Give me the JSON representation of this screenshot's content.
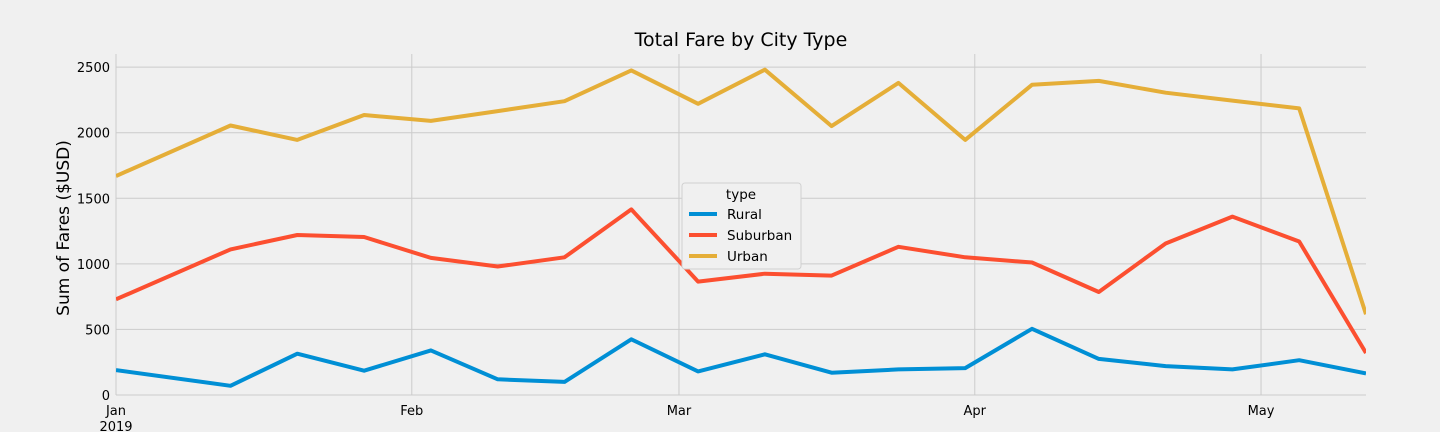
{
  "chart_data": {
    "type": "line",
    "title": "Total Fare by City Type",
    "xlabel": "",
    "ylabel": "Sum of Fares ($USD)",
    "x": [
      "2019-01-06",
      "2019-01-13",
      "2019-01-20",
      "2019-01-27",
      "2019-02-03",
      "2019-02-10",
      "2019-02-17",
      "2019-02-24",
      "2019-03-03",
      "2019-03-10",
      "2019-03-17",
      "2019-03-24",
      "2019-03-31",
      "2019-04-07",
      "2019-04-14",
      "2019-04-21",
      "2019-04-28",
      "2019-05-05",
      "2019-05-12"
    ],
    "ylim": [
      0,
      2600
    ],
    "yticks": [
      0,
      500,
      1000,
      1500,
      2000,
      2500
    ],
    "xticks": [
      {
        "label": "Jan",
        "sublabel": "2019",
        "date": "2019-01-01"
      },
      {
        "label": "Feb",
        "sublabel": "",
        "date": "2019-02-01"
      },
      {
        "label": "Mar",
        "sublabel": "",
        "date": "2019-03-01"
      },
      {
        "label": "Apr",
        "sublabel": "",
        "date": "2019-04-01"
      },
      {
        "label": "May",
        "sublabel": "",
        "date": "2019-05-01"
      }
    ],
    "grid": true,
    "legend": {
      "title": "type",
      "placement": "center"
    },
    "series": [
      {
        "name": "Rural",
        "color": "#008fd5",
        "values": [
          190,
          70,
          315,
          185,
          340,
          120,
          100,
          425,
          180,
          310,
          170,
          195,
          205,
          505,
          275,
          220,
          195,
          265,
          165
        ]
      },
      {
        "name": "Suburban",
        "color": "#fc4f30",
        "values": [
          730,
          1110,
          1220,
          1205,
          1045,
          980,
          1050,
          1415,
          865,
          925,
          910,
          1130,
          1050,
          1010,
          785,
          1155,
          1360,
          1170,
          320
        ]
      },
      {
        "name": "Urban",
        "color": "#e5ae38",
        "values": [
          1670,
          2055,
          1945,
          2135,
          2090,
          2165,
          2240,
          2475,
          2220,
          2480,
          2050,
          2380,
          1945,
          2365,
          2395,
          2305,
          2245,
          2185,
          615
        ]
      }
    ]
  }
}
